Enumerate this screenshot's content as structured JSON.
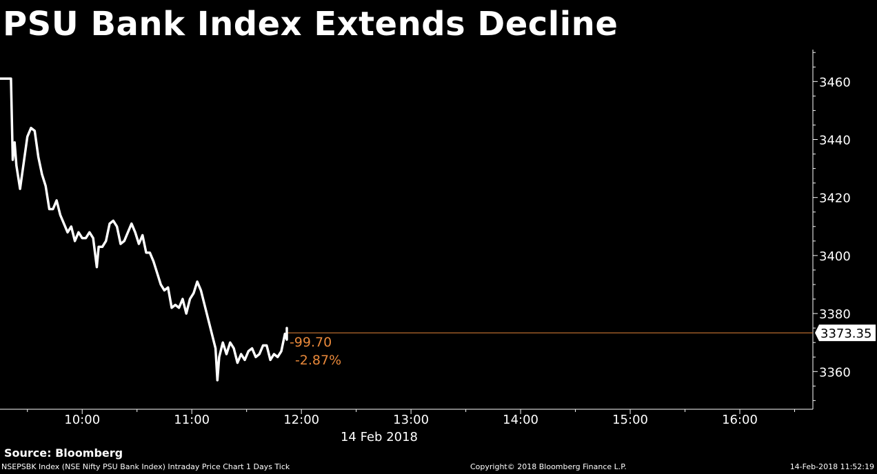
{
  "title": "PSU Bank Index Extends Decline",
  "source": "Source: Bloomberg",
  "footer": {
    "left": "NSEPSBK Index (NSE Nifty PSU Bank Index) Intraday Price Chart 1 Days  Tick",
    "center": "Copyright© 2018 Bloomberg Finance L.P.",
    "right": "14-Feb-2018 11:52:19"
  },
  "colors": {
    "background": "#000000",
    "line": "#ffffff",
    "change": "#e8883a",
    "last_price_box": "#ffffff"
  },
  "chart_data": {
    "type": "line",
    "x_tick_labels": [
      "10:00",
      "11:00",
      "12:00",
      "13:00",
      "14:00",
      "15:00",
      "16:00"
    ],
    "date_label": "14 Feb 2018",
    "y_ticks": [
      3360,
      3380,
      3400,
      3420,
      3440,
      3460
    ],
    "ylim": [
      3347,
      3471
    ],
    "xlim": [
      "09:15",
      "16:40"
    ],
    "grid": false,
    "last_price": 3373.35,
    "last_price_label": "3373.35",
    "change_abs": "-99.70",
    "change_pct": "-2.87%",
    "series": [
      {
        "values": [
          [
            "09:15",
            3461
          ],
          [
            "09:21",
            3461
          ],
          [
            "09:22",
            3433
          ],
          [
            "09:23",
            3439
          ],
          [
            "09:24",
            3431
          ],
          [
            "09:26",
            3423
          ],
          [
            "09:28",
            3432
          ],
          [
            "09:30",
            3441
          ],
          [
            "09:32",
            3444
          ],
          [
            "09:34",
            3443
          ],
          [
            "09:36",
            3434
          ],
          [
            "09:38",
            3428
          ],
          [
            "09:40",
            3424
          ],
          [
            "09:42",
            3416
          ],
          [
            "09:44",
            3416
          ],
          [
            "09:46",
            3419
          ],
          [
            "09:48",
            3414
          ],
          [
            "09:50",
            3411
          ],
          [
            "09:52",
            3408
          ],
          [
            "09:54",
            3410
          ],
          [
            "09:56",
            3405
          ],
          [
            "09:58",
            3408
          ],
          [
            "10:00",
            3406
          ],
          [
            "10:02",
            3406
          ],
          [
            "10:04",
            3408
          ],
          [
            "10:06",
            3406
          ],
          [
            "10:08",
            3396
          ],
          [
            "10:09",
            3403
          ],
          [
            "10:11",
            3403
          ],
          [
            "10:13",
            3405
          ],
          [
            "10:15",
            3411
          ],
          [
            "10:17",
            3412
          ],
          [
            "10:19",
            3410
          ],
          [
            "10:21",
            3404
          ],
          [
            "10:23",
            3405
          ],
          [
            "10:25",
            3408
          ],
          [
            "10:27",
            3411
          ],
          [
            "10:29",
            3408
          ],
          [
            "10:31",
            3404
          ],
          [
            "10:33",
            3407
          ],
          [
            "10:35",
            3401
          ],
          [
            "10:37",
            3401
          ],
          [
            "10:39",
            3398
          ],
          [
            "10:41",
            3394
          ],
          [
            "10:43",
            3390
          ],
          [
            "10:45",
            3388
          ],
          [
            "10:47",
            3389
          ],
          [
            "10:49",
            3382
          ],
          [
            "10:51",
            3383
          ],
          [
            "10:53",
            3382
          ],
          [
            "10:55",
            3385
          ],
          [
            "10:57",
            3380
          ],
          [
            "10:59",
            3385
          ],
          [
            "11:01",
            3387
          ],
          [
            "11:03",
            3391
          ],
          [
            "11:05",
            3388
          ],
          [
            "11:07",
            3383
          ],
          [
            "11:09",
            3378
          ],
          [
            "11:11",
            3373
          ],
          [
            "11:13",
            3368
          ],
          [
            "11:14",
            3357
          ],
          [
            "11:15",
            3365
          ],
          [
            "11:17",
            3370
          ],
          [
            "11:19",
            3366
          ],
          [
            "11:21",
            3370
          ],
          [
            "11:23",
            3368
          ],
          [
            "11:25",
            3363
          ],
          [
            "11:27",
            3366
          ],
          [
            "11:29",
            3364
          ],
          [
            "11:31",
            3367
          ],
          [
            "11:33",
            3368
          ],
          [
            "11:35",
            3365
          ],
          [
            "11:37",
            3366
          ],
          [
            "11:39",
            3369
          ],
          [
            "11:41",
            3369
          ],
          [
            "11:43",
            3364
          ],
          [
            "11:45",
            3366
          ],
          [
            "11:47",
            3365
          ],
          [
            "11:49",
            3367
          ],
          [
            "11:51",
            3373
          ],
          [
            "11:52",
            3371
          ],
          [
            "11:52",
            3375
          ],
          [
            "11:52",
            3373.35
          ]
        ]
      }
    ]
  }
}
